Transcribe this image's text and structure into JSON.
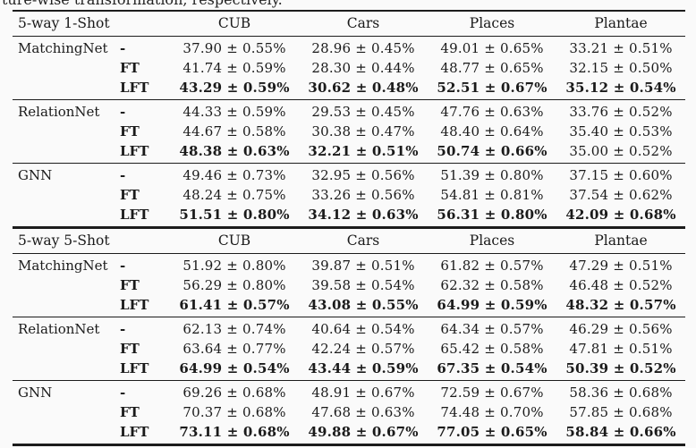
{
  "caption": "ture-wise transformation, respectively.",
  "colors": {
    "text": "#1a1a1a",
    "rule": "#1c1c1c",
    "background": "#fafafa"
  },
  "sections": [
    {
      "title": "5-way 1-Shot",
      "columns": [
        "CUB",
        "Cars",
        "Places",
        "Plantae"
      ],
      "groups": [
        {
          "method": "MatchingNet",
          "rows": [
            {
              "variant": "-",
              "values": [
                "37.90 ± 0.55%",
                "28.96 ± 0.45%",
                "49.01 ± 0.65%",
                "33.21 ± 0.51%"
              ],
              "bold": [
                false,
                false,
                false,
                false
              ]
            },
            {
              "variant": "FT",
              "values": [
                "41.74 ± 0.59%",
                "28.30 ± 0.44%",
                "48.77 ± 0.65%",
                "32.15 ± 0.50%"
              ],
              "bold": [
                false,
                false,
                false,
                false
              ]
            },
            {
              "variant": "LFT",
              "values": [
                "43.29 ± 0.59%",
                "30.62 ± 0.48%",
                "52.51 ± 0.67%",
                "35.12 ± 0.54%"
              ],
              "bold": [
                true,
                true,
                true,
                true
              ]
            }
          ]
        },
        {
          "method": "RelationNet",
          "rows": [
            {
              "variant": "-",
              "values": [
                "44.33 ± 0.59%",
                "29.53 ± 0.45%",
                "47.76 ± 0.63%",
                "33.76 ± 0.52%"
              ],
              "bold": [
                false,
                false,
                false,
                false
              ]
            },
            {
              "variant": "FT",
              "values": [
                "44.67 ± 0.58%",
                "30.38 ± 0.47%",
                "48.40 ± 0.64%",
                "35.40 ± 0.53%"
              ],
              "bold": [
                false,
                false,
                false,
                false
              ]
            },
            {
              "variant": "LFT",
              "values": [
                "48.38 ± 0.63%",
                "32.21 ± 0.51%",
                "50.74 ± 0.66%",
                "35.00 ± 0.52%"
              ],
              "bold": [
                true,
                true,
                true,
                false
              ]
            }
          ]
        },
        {
          "method": "GNN",
          "rows": [
            {
              "variant": "-",
              "values": [
                "49.46 ± 0.73%",
                "32.95 ± 0.56%",
                "51.39 ± 0.80%",
                "37.15 ± 0.60%"
              ],
              "bold": [
                false,
                false,
                false,
                false
              ]
            },
            {
              "variant": "FT",
              "values": [
                "48.24 ± 0.75%",
                "33.26 ± 0.56%",
                "54.81 ± 0.81%",
                "37.54 ± 0.62%"
              ],
              "bold": [
                false,
                false,
                false,
                false
              ]
            },
            {
              "variant": "LFT",
              "values": [
                "51.51 ± 0.80%",
                "34.12 ± 0.63%",
                "56.31 ± 0.80%",
                "42.09 ± 0.68%"
              ],
              "bold": [
                true,
                true,
                true,
                true
              ]
            }
          ]
        }
      ]
    },
    {
      "title": "5-way 5-Shot",
      "columns": [
        "CUB",
        "Cars",
        "Places",
        "Plantae"
      ],
      "groups": [
        {
          "method": "MatchingNet",
          "rows": [
            {
              "variant": "-",
              "values": [
                "51.92 ± 0.80%",
                "39.87 ± 0.51%",
                "61.82 ± 0.57%",
                "47.29 ± 0.51%"
              ],
              "bold": [
                false,
                false,
                false,
                false
              ]
            },
            {
              "variant": "FT",
              "values": [
                "56.29 ± 0.80%",
                "39.58 ± 0.54%",
                "62.32 ± 0.58%",
                "46.48 ± 0.52%"
              ],
              "bold": [
                false,
                false,
                false,
                false
              ]
            },
            {
              "variant": "LFT",
              "values": [
                "61.41 ± 0.57%",
                "43.08 ± 0.55%",
                "64.99 ± 0.59%",
                "48.32 ± 0.57%"
              ],
              "bold": [
                true,
                true,
                true,
                true
              ]
            }
          ]
        },
        {
          "method": "RelationNet",
          "rows": [
            {
              "variant": "-",
              "values": [
                "62.13 ± 0.74%",
                "40.64 ± 0.54%",
                "64.34 ± 0.57%",
                "46.29 ± 0.56%"
              ],
              "bold": [
                false,
                false,
                false,
                false
              ]
            },
            {
              "variant": "FT",
              "values": [
                "63.64 ± 0.77%",
                "42.24 ± 0.57%",
                "65.42 ± 0.58%",
                "47.81 ± 0.51%"
              ],
              "bold": [
                false,
                false,
                false,
                false
              ]
            },
            {
              "variant": "LFT",
              "values": [
                "64.99 ± 0.54%",
                "43.44 ± 0.59%",
                "67.35 ± 0.54%",
                "50.39 ± 0.52%"
              ],
              "bold": [
                true,
                true,
                true,
                true
              ]
            }
          ]
        },
        {
          "method": "GNN",
          "rows": [
            {
              "variant": "-",
              "values": [
                "69.26 ± 0.68%",
                "48.91 ± 0.67%",
                "72.59 ± 0.67%",
                "58.36 ± 0.68%"
              ],
              "bold": [
                false,
                false,
                false,
                false
              ]
            },
            {
              "variant": "FT",
              "values": [
                "70.37 ± 0.68%",
                "47.68 ± 0.63%",
                "74.48 ± 0.70%",
                "57.85 ± 0.68%"
              ],
              "bold": [
                false,
                false,
                false,
                false
              ]
            },
            {
              "variant": "LFT",
              "values": [
                "73.11 ± 0.68%",
                "49.88 ± 0.67%",
                "77.05 ± 0.65%",
                "58.84 ± 0.66%"
              ],
              "bold": [
                true,
                true,
                true,
                true
              ]
            }
          ]
        }
      ]
    }
  ]
}
